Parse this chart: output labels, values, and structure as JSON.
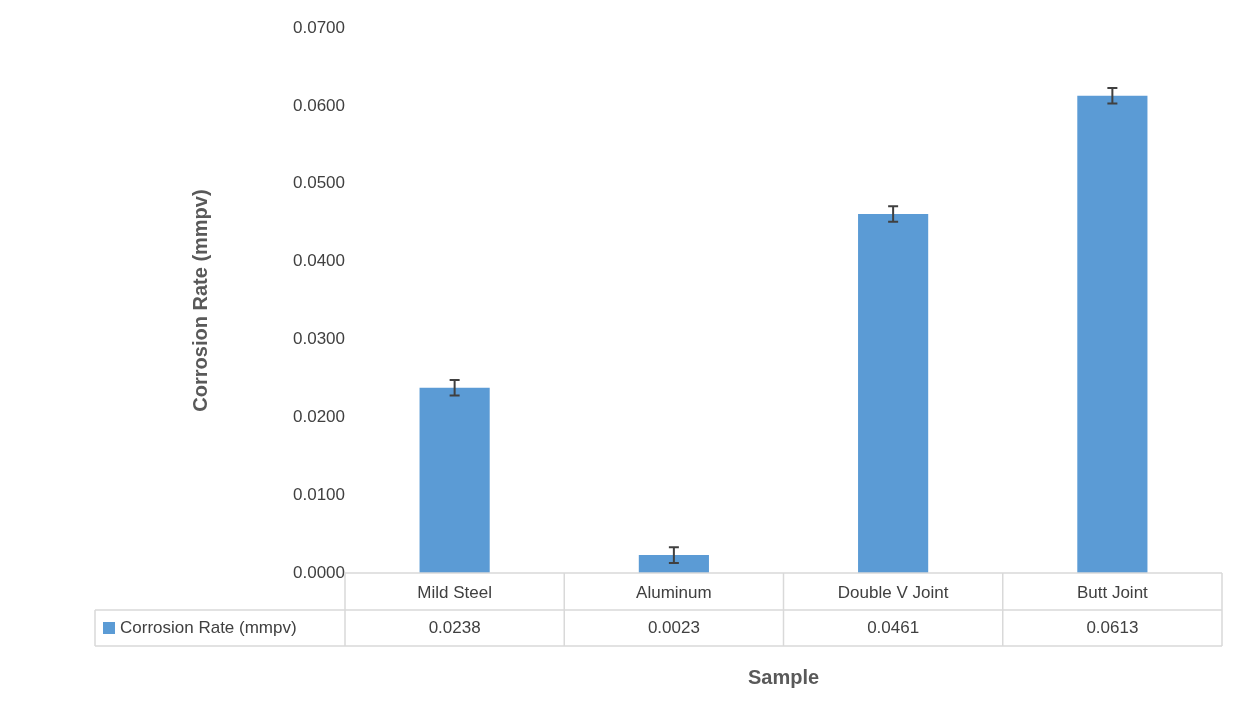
{
  "chart_data": {
    "type": "bar",
    "xlabel": "Sample",
    "ylabel": "Corrosion Rate (mmpv)",
    "categories": [
      "Mild Steel",
      "Aluminum",
      "Double V Joint",
      "Butt Joint"
    ],
    "series": [
      {
        "name": "Corrosion Rate (mmpv)",
        "color": "#5b9bd5",
        "values": [
          0.0238,
          0.0023,
          0.0461,
          0.0613
        ],
        "errors": [
          0.001,
          0.001,
          0.001,
          0.001
        ]
      }
    ],
    "ylim": [
      0,
      0.07
    ],
    "yticks": [
      {
        "value": 0,
        "label": "0.0000"
      },
      {
        "value": 0.01,
        "label": "0.0100"
      },
      {
        "value": 0.02,
        "label": "0.0200"
      },
      {
        "value": 0.03,
        "label": "0.0300"
      },
      {
        "value": 0.04,
        "label": "0.0400"
      },
      {
        "value": 0.05,
        "label": "0.0500"
      },
      {
        "value": 0.06,
        "label": "0.0600"
      },
      {
        "value": 0.07,
        "label": "0.0700"
      }
    ],
    "grid": false,
    "data_labels": true
  }
}
